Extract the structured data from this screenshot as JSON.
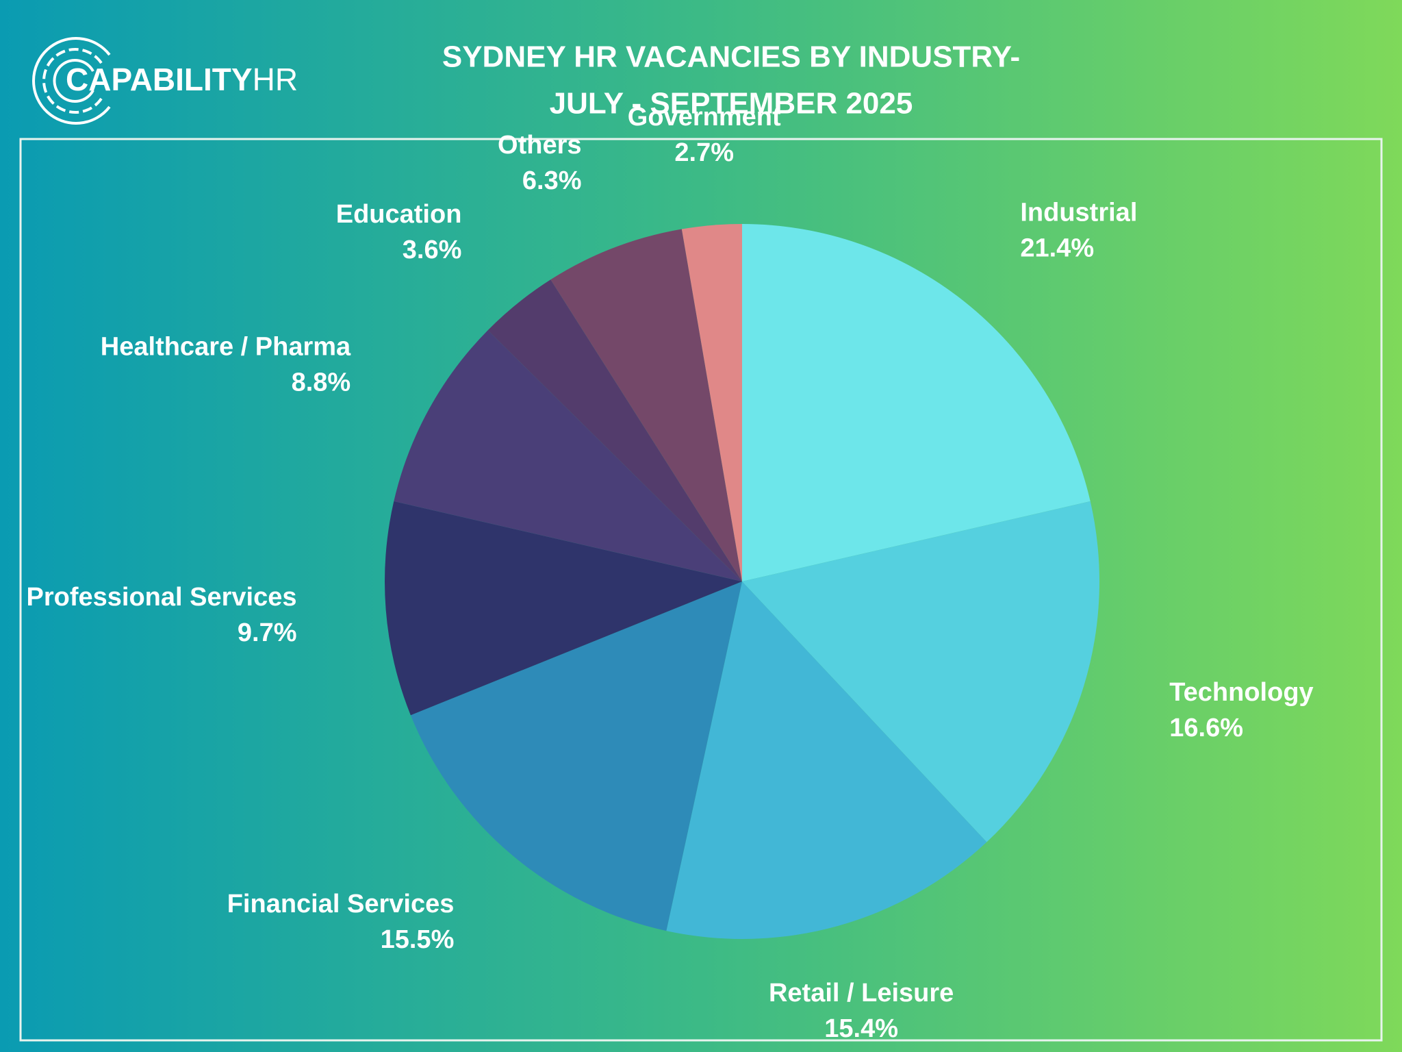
{
  "logo": {
    "name": "CAPABILITY",
    "suffix": "HR"
  },
  "chart_data": {
    "type": "pie",
    "title": [
      "SYDNEY HR VACANCIES BY INDUSTRY-",
      "JULY - SEPTEMBER 2025"
    ],
    "categories": [
      "Industrial",
      "Technology",
      "Retail / Leisure",
      "Financial Services",
      "Professional Services",
      "Healthcare / Pharma",
      "Education",
      "Others",
      "Government"
    ],
    "values": [
      21.4,
      16.6,
      15.4,
      15.5,
      9.7,
      8.8,
      3.6,
      6.3,
      2.7
    ],
    "value_labels": [
      "21.4%",
      "16.6%",
      "15.4%",
      "15.5%",
      "9.7%",
      "8.8%",
      "3.6%",
      "6.3%",
      "2.7%"
    ],
    "colors": [
      "#6de6ea",
      "#55d0df",
      "#42b7d6",
      "#2e8bb8",
      "#2f346b",
      "#4a3f78",
      "#533c6c",
      "#744869",
      "#e08888"
    ]
  }
}
